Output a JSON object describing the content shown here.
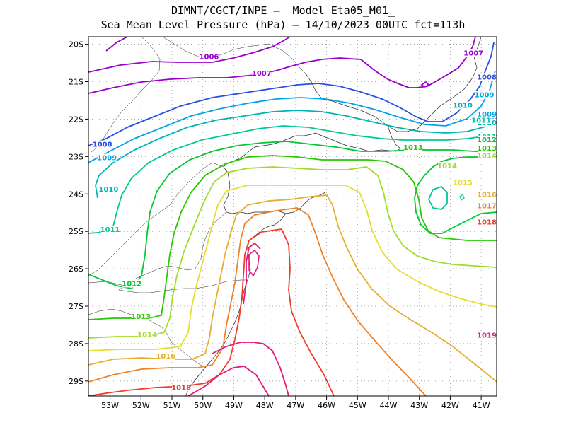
{
  "title_line1": "DIMNT/CGCT/INPE —  Model Eta05_M01_",
  "title_line2": "Sea Mean Level Pressure (hPa) — 14/10/2023 00UTC fct=113h",
  "map": {
    "lon_range": [
      -53.7,
      -40.5
    ],
    "lat_range": [
      -29.4,
      -19.8
    ],
    "lat_ticks": [
      "20S",
      "21S",
      "22S",
      "23S",
      "24S",
      "25S",
      "26S",
      "27S",
      "28S",
      "29S"
    ],
    "lon_ticks": [
      "53W",
      "52W",
      "51W",
      "50W",
      "49W",
      "48W",
      "47W",
      "46W",
      "45W",
      "44W",
      "43W",
      "42W",
      "41W"
    ],
    "grid": "dotted"
  },
  "contours": [
    {
      "value": "1006",
      "color": "#9900cc",
      "labels": [
        {
          "text": "1006",
          "lon": -49.8,
          "lat": -20.38
        }
      ]
    },
    {
      "value": "1007",
      "color": "#9900cc",
      "labels": [
        {
          "text": "1007",
          "lon": -48.1,
          "lat": -20.82
        },
        {
          "text": "1007",
          "lon": -41.25,
          "lat": -20.28
        }
      ]
    },
    {
      "value": "1008",
      "color": "#2a4fe0",
      "labels": [
        {
          "text": "1008",
          "lon": -53.25,
          "lat": -22.72
        },
        {
          "text": "1008",
          "lon": -40.8,
          "lat": -20.92
        },
        {
          "text": "1008",
          "lon": -39.3,
          "lat": -22.0
        }
      ]
    },
    {
      "value": "1009",
      "color": "#00a3e8",
      "labels": [
        {
          "text": "1009",
          "lon": -53.1,
          "lat": -23.08
        },
        {
          "text": "1009",
          "lon": -40.9,
          "lat": -21.4
        },
        {
          "text": "1009",
          "lon": -38.5,
          "lat": -21.92
        }
      ]
    },
    {
      "value": "1010",
      "color": "#00b4b4",
      "labels": [
        {
          "text": "1010",
          "lon": -53.05,
          "lat": -23.92
        },
        {
          "text": "1010",
          "lon": -41.6,
          "lat": -21.68
        },
        {
          "text": "1010",
          "lon": -38.35,
          "lat": -22.14
        }
      ]
    },
    {
      "value": "1011",
      "color": "#00c896",
      "labels": [
        {
          "text": "1011",
          "lon": -53.0,
          "lat": -25.0
        },
        {
          "text": "1011",
          "lon": -41.0,
          "lat": -22.08
        },
        {
          "text": "1011",
          "lon": -38.9,
          "lat": -22.52
        }
      ]
    },
    {
      "value": "1012",
      "color": "#00c832",
      "labels": [
        {
          "text": "1012",
          "lon": -52.3,
          "lat": -26.44
        },
        {
          "text": "1012",
          "lon": -40.0,
          "lat": -22.6
        },
        {
          "text": "1012",
          "lon": -37.5,
          "lat": -22.78
        }
      ]
    },
    {
      "value": "1013",
      "color": "#28c800",
      "labels": [
        {
          "text": "1013",
          "lon": -52.0,
          "lat": -27.32
        },
        {
          "text": "1013",
          "lon": -43.2,
          "lat": -22.8
        },
        {
          "text": "1013",
          "lon": -38.2,
          "lat": -22.82
        }
      ]
    },
    {
      "value": "1014",
      "color": "#a0dc28",
      "labels": [
        {
          "text": "1014",
          "lon": -51.8,
          "lat": -27.8
        },
        {
          "text": "1014",
          "lon": -42.1,
          "lat": -23.3
        },
        {
          "text": "1014",
          "lon": -37.9,
          "lat": -23.02
        }
      ]
    },
    {
      "value": "1015",
      "color": "#e6dc32",
      "labels": [
        {
          "text": "1015",
          "lon": -41.6,
          "lat": -23.74
        }
      ]
    },
    {
      "value": "1016",
      "color": "#e6af2d",
      "labels": [
        {
          "text": "1016",
          "lon": -51.2,
          "lat": -28.38
        },
        {
          "text": "1016",
          "lon": -39.8,
          "lat": -24.06
        }
      ]
    },
    {
      "value": "1017",
      "color": "#f08228",
      "labels": [
        {
          "text": "1017",
          "lon": -39.1,
          "lat": -24.36
        }
      ]
    },
    {
      "value": "1018",
      "color": "#f03c28",
      "labels": [
        {
          "text": "1018",
          "lon": -50.7,
          "lat": -29.22
        },
        {
          "text": "1018",
          "lon": -38.3,
          "lat": -24.8
        }
      ]
    },
    {
      "value": "1019",
      "color": "#e6197d",
      "labels": [
        {
          "text": "1019",
          "lon": -37.8,
          "lat": -27.82
        }
      ]
    }
  ]
}
